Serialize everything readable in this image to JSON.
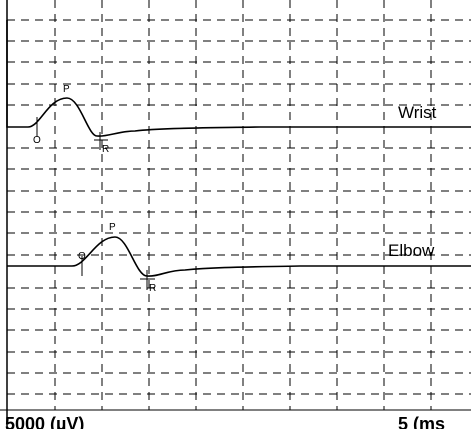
{
  "traces": [
    {
      "label": "Wrist",
      "markers": {
        "onset": "O",
        "peak": "P",
        "return": "R"
      }
    },
    {
      "label": "Elbow",
      "markers": {
        "onset": "O",
        "peak": "P",
        "return": "R"
      }
    }
  ],
  "footer": {
    "amplitude_scale": "5000  (µV)",
    "time_scale": "5  (ms"
  }
}
